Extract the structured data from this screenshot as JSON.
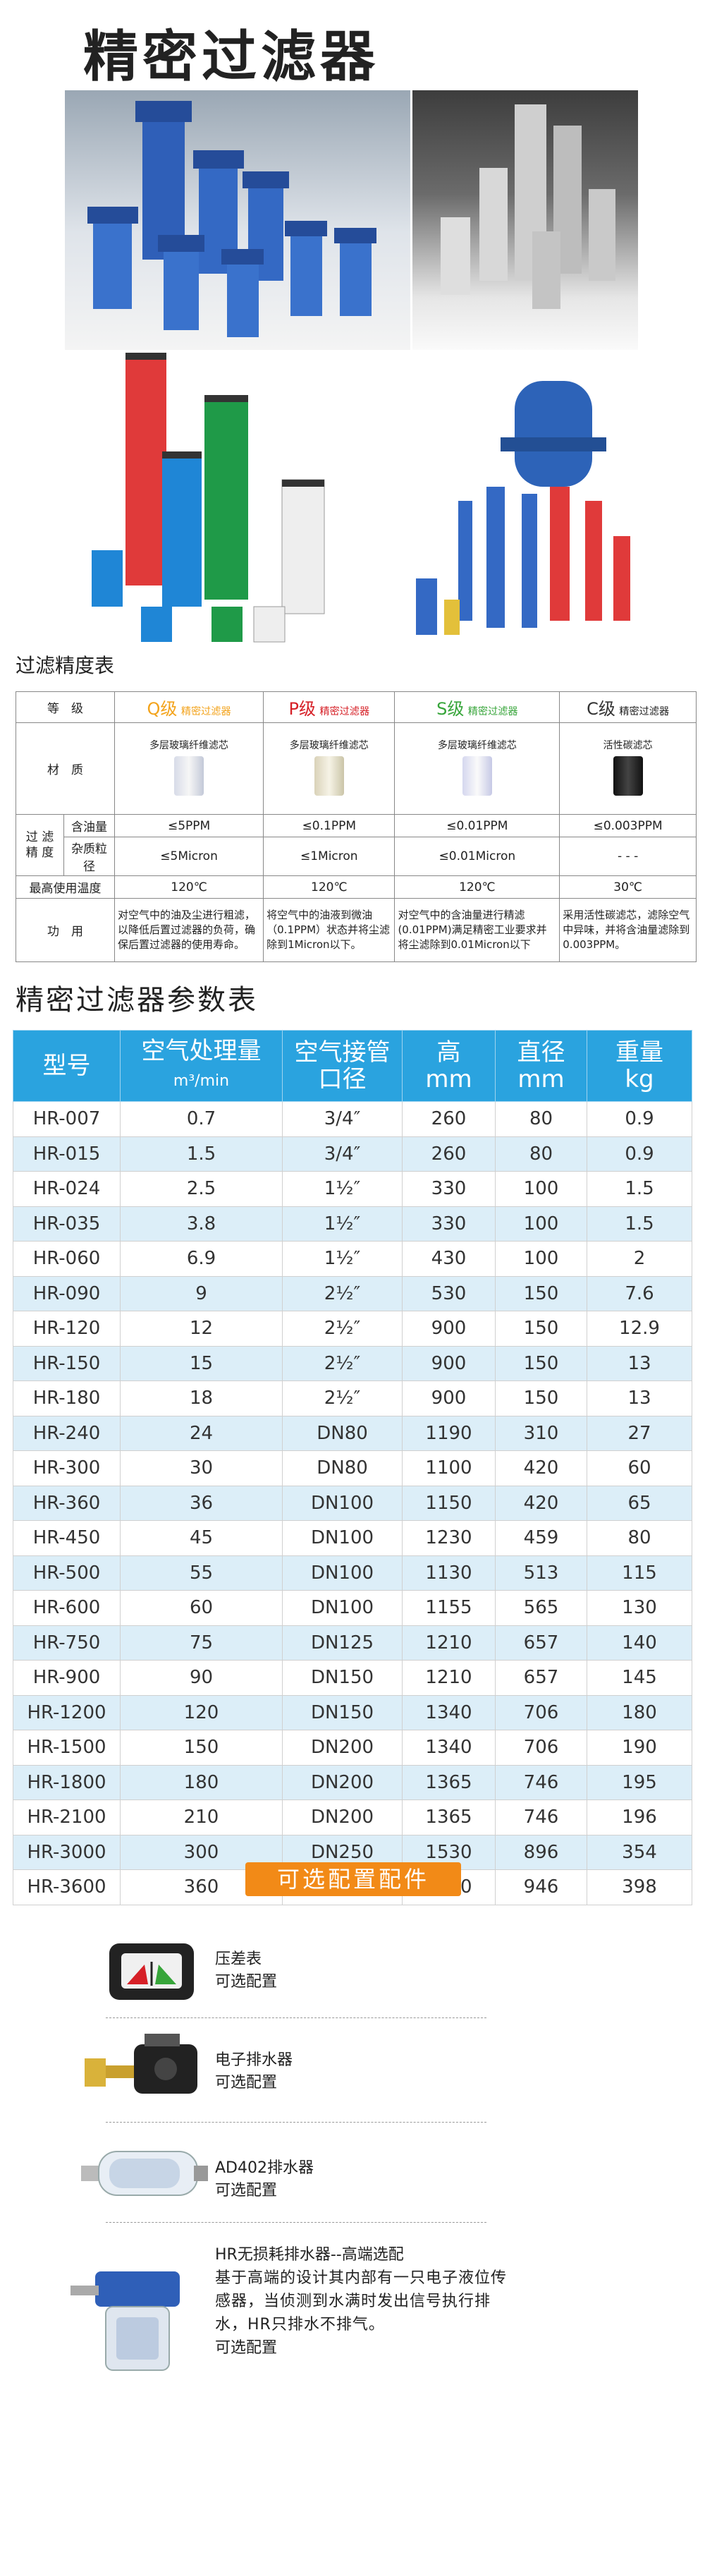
{
  "title": "精密过滤器",
  "precision": {
    "heading": "过滤精度表",
    "labels": {
      "grade": "等　级",
      "material": "材　质",
      "filter_precision": "过 滤\n精 度",
      "oil": "含油量",
      "particle": "杂质粒径",
      "max_temp": "最高使用温度",
      "function": "功　用"
    },
    "grades": [
      {
        "code": "Q级",
        "name": "精密过滤器",
        "material": "多层玻璃纤维滤芯",
        "oil": "≤5PPM",
        "particle": "≤5Micron",
        "temp": "120℃",
        "func": "对空气中的油及尘进行粗滤，以降低后置过滤器的负荷，确保后置过滤器的使用寿命。",
        "color": "#f3a31b"
      },
      {
        "code": "P级",
        "name": "精密过滤器",
        "material": "多层玻璃纤维滤芯",
        "oil": "≤0.1PPM",
        "particle": "≤1Micron",
        "temp": "120℃",
        "func": "将空气中的油液到微油（0.1PPM）状态并将尘滤除到1Micron以下。",
        "color": "#d62027"
      },
      {
        "code": "S级",
        "name": "精密过滤器",
        "material": "多层玻璃纤维滤芯",
        "oil": "≤0.01PPM",
        "particle": "≤0.01Micron",
        "temp": "120℃",
        "func": "对空气中的含油量进行精滤(0.01PPM)满足精密工业要求并将尘滤除到0.01Micron以下",
        "color": "#37a53a"
      },
      {
        "code": "C级",
        "name": "精密过滤器",
        "material": "活性碳滤芯",
        "oil": "≤0.003PPM",
        "particle": "- - -",
        "temp": "30℃",
        "func": "采用活性碳滤芯，滤除空气中异味，并将含油量滤除到0.003PPM。",
        "color": "#333333"
      }
    ]
  },
  "params": {
    "heading": "精密过滤器参数表",
    "headers": {
      "model": "型号",
      "flow": "空气处理量",
      "flow_unit": "m³/min",
      "port": "空气接管",
      "port2": "口径",
      "height": "高",
      "height_unit": "mm",
      "dia": "直径",
      "dia_unit": "mm",
      "weight": "重量",
      "weight_unit": "kg"
    },
    "rows": [
      [
        "HR-007",
        "0.7",
        "3/4″",
        "260",
        "80",
        "0.9"
      ],
      [
        "HR-015",
        "1.5",
        "3/4″",
        "260",
        "80",
        "0.9"
      ],
      [
        "HR-024",
        "2.5",
        "1½″",
        "330",
        "100",
        "1.5"
      ],
      [
        "HR-035",
        "3.8",
        "1½″",
        "330",
        "100",
        "1.5"
      ],
      [
        "HR-060",
        "6.9",
        "1½″",
        "430",
        "100",
        "2"
      ],
      [
        "HR-090",
        "9",
        "2½″",
        "530",
        "150",
        "7.6"
      ],
      [
        "HR-120",
        "12",
        "2½″",
        "900",
        "150",
        "12.9"
      ],
      [
        "HR-150",
        "15",
        "2½″",
        "900",
        "150",
        "13"
      ],
      [
        "HR-180",
        "18",
        "2½″",
        "900",
        "150",
        "13"
      ],
      [
        "HR-240",
        "24",
        "DN80",
        "1190",
        "310",
        "27"
      ],
      [
        "HR-300",
        "30",
        "DN80",
        "1100",
        "420",
        "60"
      ],
      [
        "HR-360",
        "36",
        "DN100",
        "1150",
        "420",
        "65"
      ],
      [
        "HR-450",
        "45",
        "DN100",
        "1230",
        "459",
        "80"
      ],
      [
        "HR-500",
        "55",
        "DN100",
        "1130",
        "513",
        "115"
      ],
      [
        "HR-600",
        "60",
        "DN100",
        "1155",
        "565",
        "130"
      ],
      [
        "HR-750",
        "75",
        "DN125",
        "1210",
        "657",
        "140"
      ],
      [
        "HR-900",
        "90",
        "DN150",
        "1210",
        "657",
        "145"
      ],
      [
        "HR-1200",
        "120",
        "DN150",
        "1340",
        "706",
        "180"
      ],
      [
        "HR-1500",
        "150",
        "DN200",
        "1340",
        "706",
        "190"
      ],
      [
        "HR-1800",
        "180",
        "DN200",
        "1365",
        "746",
        "195"
      ],
      [
        "HR-2100",
        "210",
        "DN200",
        "1365",
        "746",
        "196"
      ],
      [
        "HR-3000",
        "300",
        "DN250",
        "1530",
        "896",
        "354"
      ],
      [
        "HR-3600",
        "360",
        "DN250",
        "1660",
        "946",
        "398"
      ]
    ]
  },
  "options": {
    "heading": "可选配置配件",
    "items": [
      {
        "name": "压差表",
        "note": "可选配置"
      },
      {
        "name": "电子排水器",
        "note": "可选配置"
      },
      {
        "name": "AD402排水器",
        "note": "可选配置"
      },
      {
        "name": "HR无损耗排水器--高端选配",
        "desc": "基于高端的设计其内部有一只电子液位传感器，当侦测到水满时发出信号执行排水，HR只排水不排气。",
        "note": "可选配置"
      }
    ]
  },
  "colors": {
    "header_blue": "#2aa3df",
    "row_stripe": "#dceef8",
    "option_orange": "#f28a17"
  }
}
